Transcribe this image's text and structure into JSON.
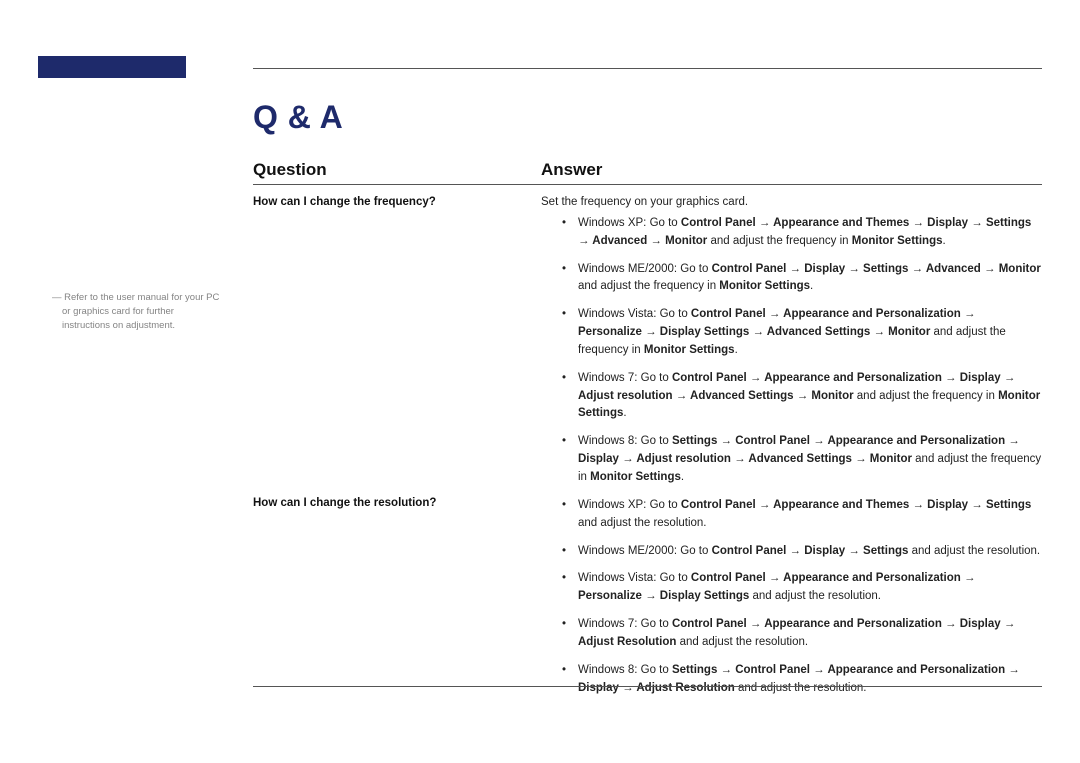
{
  "colors": {
    "accent": "#1e2a6b",
    "rule": "#555555",
    "text": "#222222",
    "footnote": "#848484",
    "background": "#ffffff"
  },
  "title": "Q & A",
  "columns": {
    "question": "Question",
    "answer": "Answer"
  },
  "footnote": "―  Refer to the user manual for your PC or graphics card for further instructions on adjustment.",
  "qa": [
    {
      "question": "How can I change the frequency?",
      "intro": "Set the frequency on your graphics card.",
      "bullets": [
        "Windows XP: Go to <b>Control Panel → Appearance and Themes → Display → Settings → Advanced → Monitor</b> and adjust the frequency in <b>Monitor Settings</b>.",
        "Windows ME/2000: Go to <b>Control Panel → Display → Settings → Advanced → Monitor</b> and adjust the frequency in <b>Monitor Settings</b>.",
        "Windows Vista: Go to <b>Control Panel → Appearance and Personalization → Personalize → Display Settings → Advanced Settings → Monitor</b> and adjust the frequency in <b>Monitor Settings</b>.",
        "Windows 7: Go to <b>Control Panel → Appearance and Personalization → Display → Adjust resolution → Advanced Settings → Monitor</b> and adjust the frequency in <b>Monitor Settings</b>.",
        "Windows 8: Go to <b>Settings → Control Panel → Appearance and Personalization → Display → Adjust resolution → Advanced Settings → Monitor</b> and adjust the frequency in <b>Monitor Settings</b>."
      ]
    },
    {
      "question": "How can I change the resolution?",
      "intro": "",
      "bullets": [
        "Windows XP: Go to <b>Control Panel → Appearance and Themes → Display → Settings</b> and adjust the resolution.",
        "Windows ME/2000: Go to <b>Control Panel → Display → Settings</b> and adjust the resolution.",
        "Windows Vista: Go to <b>Control Panel → Appearance and Personalization → Personalize → Display Settings</b> and adjust the resolution.",
        "Windows 7: Go to <b>Control Panel → Appearance and Personalization → Display → Adjust Resolution</b> and adjust the resolution.",
        "Windows 8: Go to <b>Settings → Control Panel → Appearance and Personalization → Display → Adjust Resolution</b> and adjust the resolution."
      ]
    }
  ]
}
